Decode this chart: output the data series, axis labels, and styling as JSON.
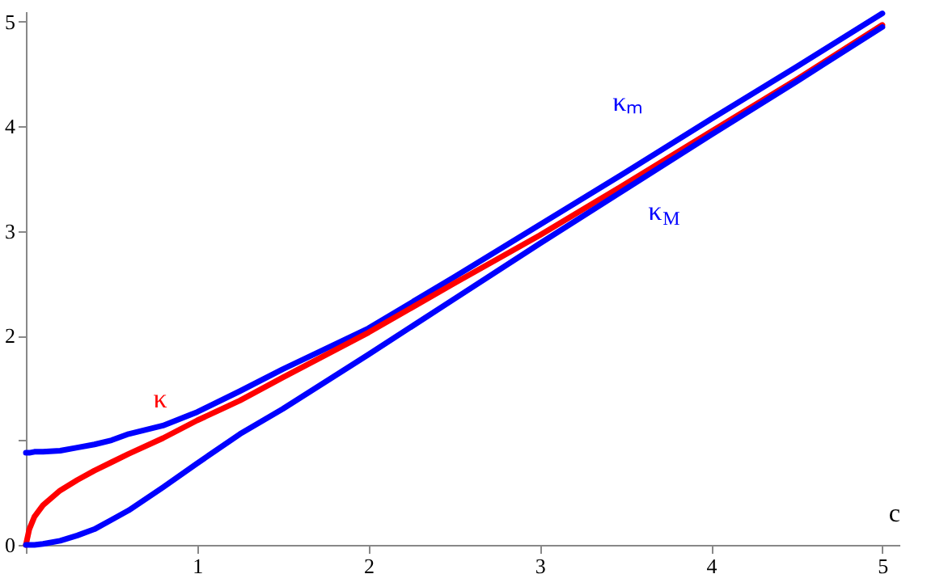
{
  "chart_data": {
    "type": "line",
    "xlabel": "c",
    "x": [
      0,
      0.02,
      0.05,
      0.1,
      0.2,
      0.3,
      0.4,
      0.5,
      0.6,
      0.8,
      1,
      1.25,
      1.5,
      2,
      2.5,
      3,
      3.5,
      4,
      4.5,
      5
    ],
    "series": [
      {
        "name": "κₘ",
        "color": "#0000ff",
        "values": [
          0.88,
          0.88,
          0.89,
          0.89,
          0.9,
          0.93,
          0.96,
          1.0,
          1.06,
          1.14,
          1.27,
          1.47,
          1.68,
          2.07,
          2.56,
          3.06,
          3.56,
          4.07,
          4.57,
          5.08
        ]
      },
      {
        "name": "κ",
        "color": "#ff0000",
        "values": [
          0,
          0.15,
          0.27,
          0.38,
          0.52,
          0.62,
          0.71,
          0.79,
          0.87,
          1.02,
          1.19,
          1.38,
          1.6,
          2.03,
          2.5,
          2.96,
          3.45,
          3.95,
          4.45,
          4.97
        ]
      },
      {
        "name": "κ$_{M}$",
        "color": "#0000ff",
        "values": [
          0,
          0,
          0,
          0.01,
          0.04,
          0.09,
          0.15,
          0.24,
          0.33,
          0.55,
          0.78,
          1.06,
          1.3,
          1.82,
          2.35,
          2.88,
          3.4,
          3.92,
          4.43,
          4.95
        ]
      }
    ],
    "xlim": [
      0,
      5.1
    ],
    "ylim": [
      0,
      5.1
    ],
    "xticks": [
      {
        "value": 0,
        "label": null
      },
      1,
      2,
      3,
      4,
      5
    ],
    "yticks": [
      0,
      {
        "value": 1,
        "label": null
      },
      2,
      3,
      4,
      5
    ],
    "grid": false,
    "marker": "none",
    "line_style": "solid"
  }
}
